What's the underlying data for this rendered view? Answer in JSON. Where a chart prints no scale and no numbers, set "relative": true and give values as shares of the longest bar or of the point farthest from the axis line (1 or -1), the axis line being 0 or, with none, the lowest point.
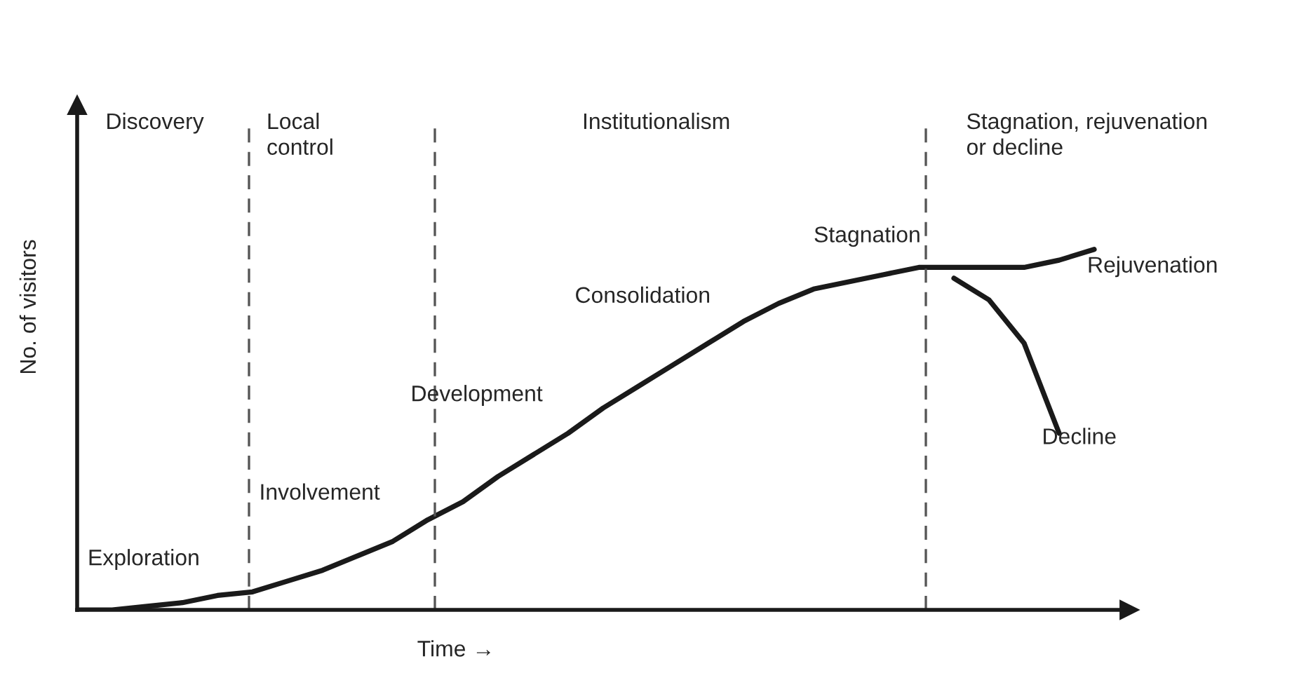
{
  "chart_data": {
    "type": "line",
    "relative": true,
    "xlabel": "Time →",
    "ylabel": "No. of visitors",
    "categories": [
      null,
      null,
      null,
      null,
      null,
      null,
      null,
      null,
      null,
      null,
      null,
      null,
      null,
      null,
      null,
      null,
      null,
      null,
      null,
      null,
      null,
      null,
      null,
      null,
      null,
      null,
      null,
      null,
      null,
      null
    ],
    "series": [
      {
        "color": "#1a1a1a",
        "values": [
          0,
          0.0,
          0.01,
          0.02,
          0.04,
          0.05,
          0.08,
          0.11,
          0.15,
          0.19,
          0.25,
          0.3,
          0.37,
          0.43,
          0.49,
          0.56,
          0.62,
          0.68,
          0.74,
          0.8,
          0.85,
          0.89,
          0.91,
          0.93,
          0.95,
          0.95,
          0.95,
          0.95,
          0.97,
          1.0
        ]
      },
      {
        "name": "Decline",
        "color": "#1a1a1a",
        "values": [
          null,
          null,
          null,
          null,
          null,
          null,
          null,
          null,
          null,
          null,
          null,
          null,
          null,
          null,
          null,
          null,
          null,
          null,
          null,
          null,
          null,
          null,
          null,
          null,
          null,
          0.92,
          0.86,
          0.74,
          0.49,
          null
        ]
      }
    ],
    "annotations": [
      "Discovery",
      "Local\ncontrol",
      "Institutionalism",
      "Stagnation, rejuvenation\nor decline",
      "Exploration",
      "Involvement",
      "Development",
      "Consolidation",
      "Stagnation",
      "Rejuvenation"
    ],
    "marker": "none",
    "line_style": "solid"
  }
}
